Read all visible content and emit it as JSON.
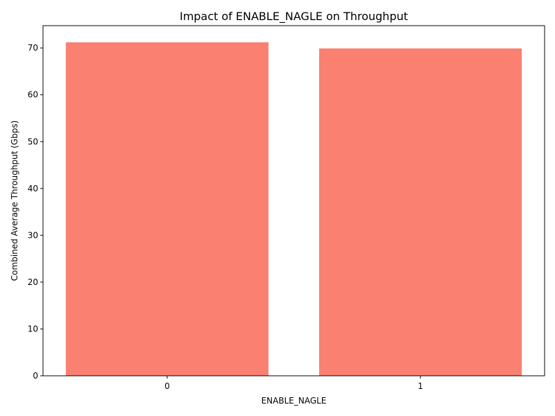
{
  "chart_data": {
    "type": "bar",
    "title": "Impact of ENABLE_NAGLE on Throughput",
    "xlabel": "ENABLE_NAGLE",
    "ylabel": "Combined Average Throughput (Gbps)",
    "categories": [
      "0",
      "1"
    ],
    "values": [
      71.2,
      69.9
    ],
    "ylim": [
      0,
      74.76
    ],
    "yticks": [
      0,
      10,
      20,
      30,
      40,
      50,
      60,
      70
    ],
    "bar_color": "#fa8072",
    "grid": false,
    "legend": "none"
  }
}
